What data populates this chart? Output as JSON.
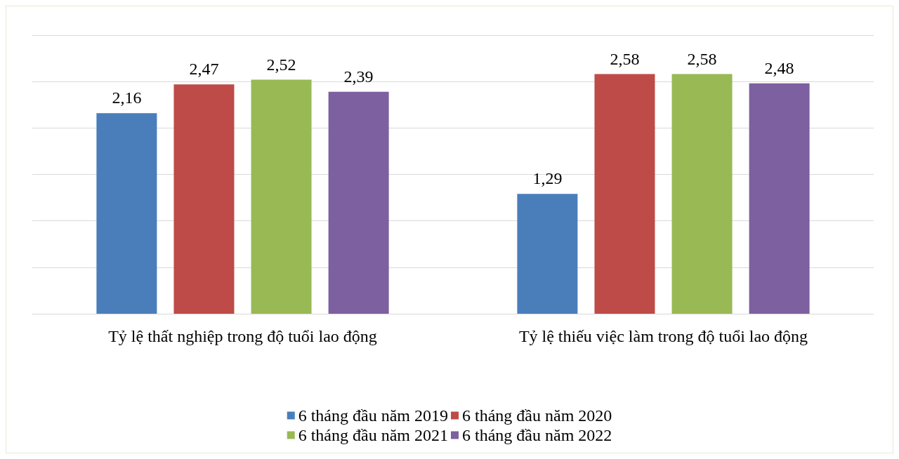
{
  "chart_data": {
    "type": "bar",
    "categories": [
      "Tỷ lệ thất nghiệp trong độ tuổi lao động",
      "Tỷ lệ thiếu việc làm trong độ tuổi lao động"
    ],
    "series": [
      {
        "name": "6 tháng đầu năm 2019",
        "color": "#4a7ebb",
        "values": [
          2.16,
          1.29
        ],
        "value_labels": [
          "2,16",
          "1,29"
        ]
      },
      {
        "name": "6 tháng đầu năm 2020",
        "color": "#be4b48",
        "values": [
          2.47,
          2.58
        ],
        "value_labels": [
          "2,47",
          "2,58"
        ]
      },
      {
        "name": "6 tháng đầu năm 2021",
        "color": "#98b954",
        "values": [
          2.52,
          2.58
        ],
        "value_labels": [
          "2,52",
          "2,58"
        ]
      },
      {
        "name": "6 tháng đầu năm 2022",
        "color": "#7d60a0",
        "values": [
          2.39,
          2.48
        ],
        "value_labels": [
          "2,39",
          "2,48"
        ]
      }
    ],
    "ylim": [
      0,
      3
    ],
    "yticks": [
      0,
      0.5,
      1,
      1.5,
      2,
      2.5,
      3
    ],
    "tick_labels": "x",
    "grid": "y",
    "legend": "bottom"
  }
}
